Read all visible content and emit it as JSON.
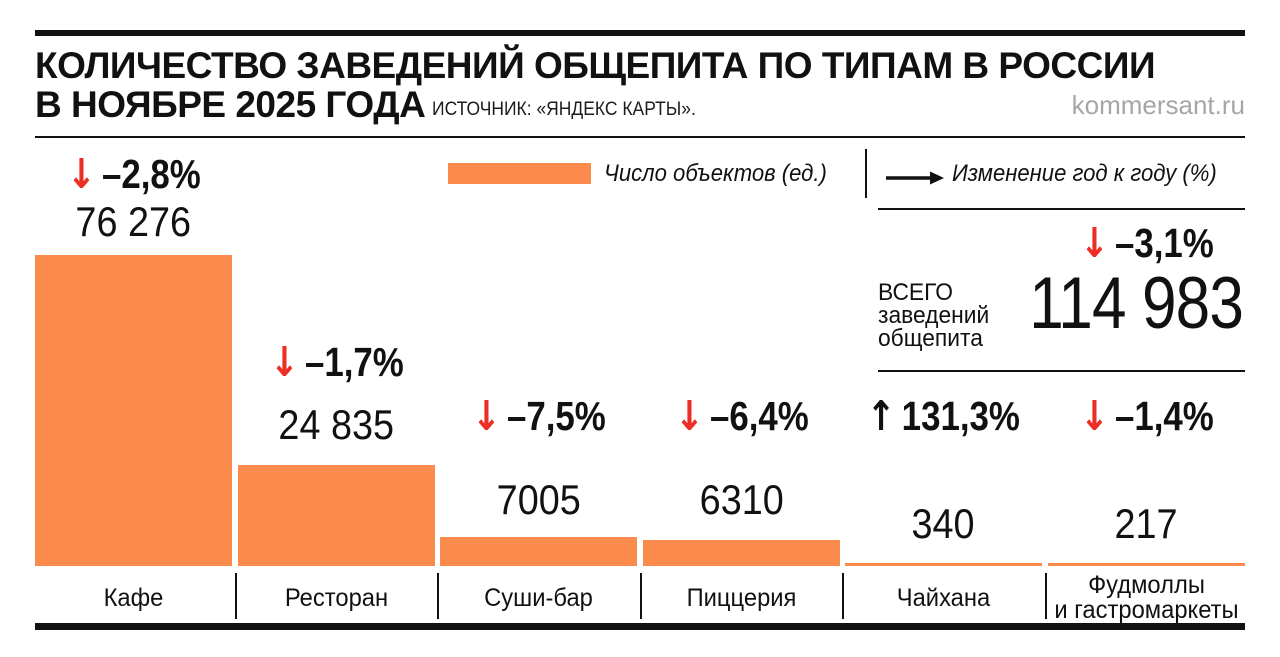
{
  "header": {
    "title_line1": "КОЛИЧЕСТВО ЗАВЕДЕНИЙ ОБЩЕПИТА ПО ТИПАМ В РОССИИ",
    "title_line2": "В НОЯБРЕ 2025 ГОДА",
    "source": "ИСТОЧНИК: «ЯНДЕКС КАРТЫ».",
    "site": "kommersant.ru"
  },
  "legend": {
    "bar_label": "Число объектов (ед.)",
    "arrow_label": "Изменение год к году (%)"
  },
  "summary": {
    "label": "ВСЕГО\nзаведений\nобщепита",
    "value": "114 983",
    "change": "–3,1%",
    "change_arrow": "↓"
  },
  "colors": {
    "bar": "#FA8B4D",
    "negative": "#ED2E24",
    "positive": "#111111",
    "site_gray": "#A6A6A6"
  },
  "chart_data": {
    "type": "bar",
    "title": "Количество заведений общепита по типам в России в ноябре 2025 года",
    "source": "«Яндекс Карты»",
    "categories": [
      "Кафе",
      "Ресторан",
      "Суши-бар",
      "Пиццерия",
      "Чайхана",
      "Фудмоллы и гастромаркеты"
    ],
    "category_labels": [
      "Кафе",
      "Ресторан",
      "Суши-бар",
      "Пиццерия",
      "Чайхана",
      "Фудмоллы\nи гастромаркеты"
    ],
    "values": [
      76276,
      24835,
      7005,
      6310,
      340,
      217
    ],
    "value_labels": [
      "76 276",
      "24 835",
      "7005",
      "6310",
      "340",
      "217"
    ],
    "changes_pct": [
      -2.8,
      -1.7,
      -7.5,
      -6.4,
      131.3,
      -1.4
    ],
    "change_labels": [
      "–2,8%",
      "–1,7%",
      "–7,5%",
      "–6,4%",
      "131,3%",
      "–1,4%"
    ],
    "change_arrows": [
      "↓",
      "↓",
      "↓",
      "↓",
      "↑",
      "↓"
    ],
    "total": 114983,
    "total_label": "114 983",
    "total_change_pct": -3.1,
    "series_label": "Число объектов (ед.)",
    "change_series_label": "Изменение год к году (%)",
    "ylabel": "Число объектов (ед.)",
    "xlabel": "",
    "ylim": [
      0,
      76276
    ],
    "grid": false,
    "legend_position": "top"
  }
}
